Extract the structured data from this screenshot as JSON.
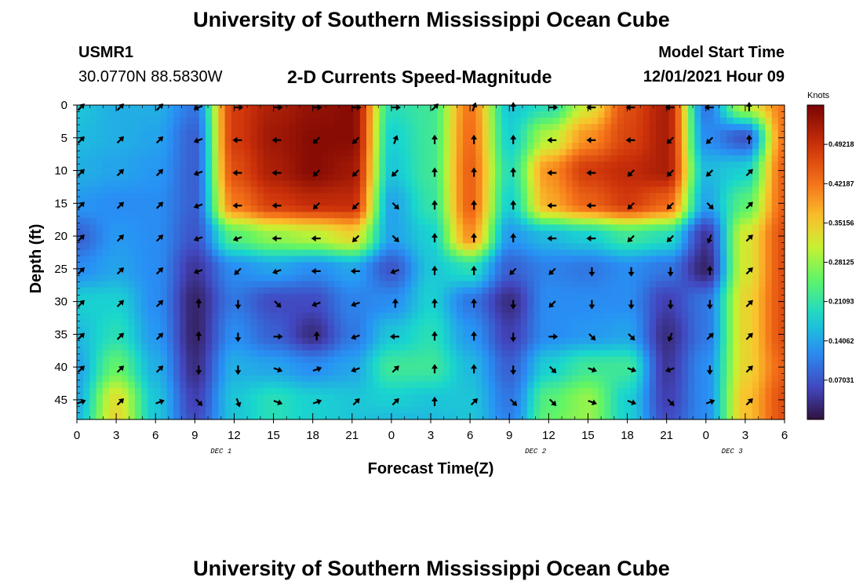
{
  "page": {
    "title": "University of Southern Mississippi Ocean Cube",
    "station_id": "USMR1",
    "station_coords": "30.0770N  88.5830W",
    "subtitle": "2-D Currents Speed-Magnitude",
    "model_start_label": "Model Start Time",
    "model_start_value": "12/01/2021 Hour 09",
    "bottom_title": "University of Southern Mississippi Ocean Cube"
  },
  "chart_data": {
    "type": "heatmap",
    "title": "2-D Currents Speed-Magnitude",
    "xlabel": "Forecast Time(Z)",
    "ylabel": "Depth (ft)",
    "x_ticks": [
      "0",
      "3",
      "6",
      "9",
      "12",
      "15",
      "18",
      "21",
      "0",
      "3",
      "6",
      "9",
      "12",
      "15",
      "18",
      "21",
      "0",
      "3",
      "6"
    ],
    "x_hours": [
      0,
      3,
      6,
      9,
      12,
      15,
      18,
      21,
      24,
      27,
      30,
      33,
      36,
      39,
      42,
      45,
      48,
      51,
      54
    ],
    "x_range": [
      0,
      54
    ],
    "date_labels": [
      {
        "text": "DEC 1",
        "hour": 11
      },
      {
        "text": "DEC 2",
        "hour": 35
      },
      {
        "text": "DEC 3",
        "hour": 50
      }
    ],
    "y_ticks": [
      "0",
      "5",
      "10",
      "15",
      "20",
      "25",
      "30",
      "35",
      "40",
      "45"
    ],
    "y_values": [
      0,
      5,
      10,
      15,
      20,
      25,
      30,
      35,
      40,
      45
    ],
    "y_range": [
      0,
      48
    ],
    "y_inverted": true,
    "colorbar": {
      "unit": "Knots",
      "min": 0,
      "max": 0.5625,
      "labels": [
        "0.49218",
        "0.42187",
        "0.35156",
        "0.28125",
        "0.21093",
        "0.14062",
        "0.07031"
      ],
      "label_values": [
        0.49218,
        0.42187,
        0.35156,
        0.28125,
        0.21093,
        0.14062,
        0.07031
      ]
    },
    "speed_grid": {
      "hours": [
        0,
        3,
        6,
        9,
        12,
        15,
        18,
        21,
        24,
        27,
        30,
        33,
        36,
        39,
        42,
        45,
        48,
        51,
        54
      ],
      "depths": [
        0,
        5,
        10,
        15,
        20,
        25,
        30,
        35,
        40,
        45,
        48
      ],
      "values": [
        [
          0.17,
          0.15,
          0.15,
          0.1,
          0.48,
          0.52,
          0.54,
          0.55,
          0.2,
          0.22,
          0.42,
          0.17,
          0.2,
          0.32,
          0.46,
          0.52,
          0.1,
          0.3,
          0.42
        ],
        [
          0.16,
          0.15,
          0.14,
          0.08,
          0.48,
          0.53,
          0.55,
          0.55,
          0.18,
          0.22,
          0.43,
          0.18,
          0.3,
          0.4,
          0.47,
          0.52,
          0.12,
          0.07,
          0.42
        ],
        [
          0.15,
          0.14,
          0.13,
          0.08,
          0.46,
          0.52,
          0.55,
          0.53,
          0.17,
          0.22,
          0.44,
          0.2,
          0.4,
          0.48,
          0.5,
          0.52,
          0.16,
          0.18,
          0.44
        ],
        [
          0.13,
          0.12,
          0.12,
          0.08,
          0.42,
          0.48,
          0.5,
          0.5,
          0.14,
          0.21,
          0.44,
          0.18,
          0.38,
          0.44,
          0.48,
          0.44,
          0.14,
          0.24,
          0.44
        ],
        [
          0.08,
          0.13,
          0.12,
          0.07,
          0.24,
          0.28,
          0.3,
          0.34,
          0.14,
          0.18,
          0.4,
          0.13,
          0.16,
          0.18,
          0.22,
          0.2,
          0.04,
          0.32,
          0.46
        ],
        [
          0.12,
          0.14,
          0.12,
          0.04,
          0.12,
          0.14,
          0.12,
          0.14,
          0.07,
          0.17,
          0.2,
          0.08,
          0.11,
          0.1,
          0.12,
          0.1,
          0.02,
          0.32,
          0.46
        ],
        [
          0.18,
          0.18,
          0.12,
          0.02,
          0.1,
          0.06,
          0.06,
          0.11,
          0.12,
          0.18,
          0.1,
          0.03,
          0.12,
          0.12,
          0.12,
          0.05,
          0.1,
          0.34,
          0.46
        ],
        [
          0.16,
          0.2,
          0.13,
          0.02,
          0.12,
          0.08,
          0.03,
          0.1,
          0.17,
          0.2,
          0.13,
          0.05,
          0.12,
          0.13,
          0.14,
          0.03,
          0.1,
          0.34,
          0.46
        ],
        [
          0.14,
          0.25,
          0.15,
          0.03,
          0.15,
          0.14,
          0.12,
          0.14,
          0.22,
          0.22,
          0.16,
          0.08,
          0.18,
          0.22,
          0.22,
          0.04,
          0.12,
          0.34,
          0.44
        ],
        [
          0.15,
          0.33,
          0.17,
          0.05,
          0.17,
          0.2,
          0.18,
          0.17,
          0.18,
          0.17,
          0.17,
          0.1,
          0.24,
          0.28,
          0.18,
          0.05,
          0.12,
          0.36,
          0.46
        ],
        [
          0.16,
          0.34,
          0.17,
          0.06,
          0.17,
          0.2,
          0.18,
          0.17,
          0.16,
          0.16,
          0.17,
          0.11,
          0.25,
          0.28,
          0.18,
          0.06,
          0.12,
          0.36,
          0.46
        ]
      ]
    },
    "arrows": {
      "hours": [
        0,
        3,
        6,
        9,
        12,
        15,
        18,
        21,
        24,
        27,
        30,
        33,
        36,
        39,
        42,
        45,
        48,
        51
      ],
      "depths": [
        0,
        5,
        10,
        15,
        20,
        25,
        30,
        35,
        40,
        45
      ],
      "angles_deg": [
        [
          45,
          45,
          45,
          -160,
          0,
          0,
          0,
          0,
          0,
          45,
          70,
          90,
          0,
          180,
          180,
          180,
          180,
          90
        ],
        [
          45,
          45,
          45,
          -160,
          180,
          180,
          -135,
          -135,
          70,
          90,
          90,
          90,
          180,
          180,
          180,
          -135,
          -135,
          90
        ],
        [
          45,
          45,
          45,
          -160,
          180,
          180,
          -135,
          -135,
          -135,
          90,
          90,
          90,
          180,
          180,
          -135,
          -135,
          -135,
          45
        ],
        [
          45,
          45,
          45,
          -160,
          180,
          180,
          -135,
          -135,
          -45,
          90,
          90,
          90,
          180,
          180,
          -135,
          -135,
          -45,
          45
        ],
        [
          45,
          45,
          45,
          -160,
          -160,
          180,
          180,
          -135,
          -45,
          90,
          90,
          90,
          180,
          180,
          -135,
          -135,
          -110,
          45
        ],
        [
          45,
          45,
          45,
          -160,
          -135,
          -160,
          180,
          180,
          -160,
          90,
          90,
          -135,
          -135,
          -90,
          -90,
          -90,
          90,
          45
        ],
        [
          45,
          45,
          45,
          90,
          -90,
          -45,
          -160,
          -160,
          90,
          90,
          90,
          -90,
          -135,
          -90,
          -90,
          -90,
          -90,
          45
        ],
        [
          45,
          45,
          45,
          90,
          -90,
          0,
          90,
          -160,
          180,
          90,
          90,
          -90,
          0,
          -45,
          -45,
          -110,
          45,
          45
        ],
        [
          45,
          45,
          45,
          -90,
          -90,
          -20,
          20,
          -160,
          45,
          90,
          90,
          -90,
          -45,
          -20,
          -20,
          -160,
          -90,
          45
        ],
        [
          20,
          45,
          20,
          -45,
          -70,
          -20,
          20,
          45,
          45,
          90,
          45,
          -45,
          -45,
          -20,
          -20,
          -45,
          20,
          45
        ]
      ]
    }
  }
}
